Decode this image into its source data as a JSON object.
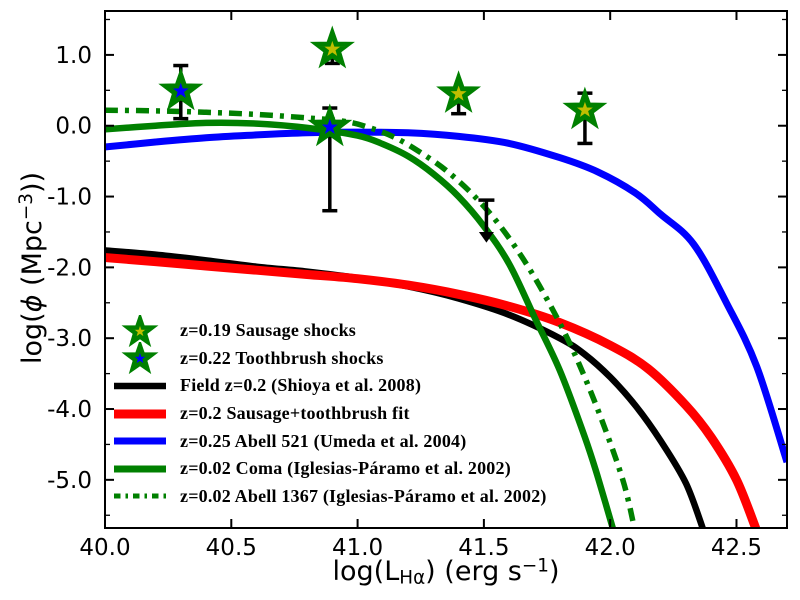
{
  "colors": {
    "background": "#ffffff",
    "frame": "#000000",
    "tick_text": "#000000"
  },
  "chart_data": {
    "type": "line",
    "title": "",
    "xlabel_parts": {
      "pre": "log(L",
      "sub": "Hα",
      "mid": ") (erg s",
      "sup": "−1",
      "post": ")"
    },
    "ylabel_parts": {
      "pre": "log(",
      "sym": "ϕ",
      "mid": " (Mpc",
      "sup": "−3",
      "post": "))"
    },
    "axes": {
      "xlim": [
        40.0,
        42.7
      ],
      "ylim": [
        -5.68,
        1.62
      ],
      "grid": false,
      "xticks": [
        {
          "v": 40.0,
          "label": "40.0"
        },
        {
          "v": 40.5,
          "label": "40.5"
        },
        {
          "v": 41.0,
          "label": "41.0"
        },
        {
          "v": 41.5,
          "label": "41.5"
        },
        {
          "v": 42.0,
          "label": "42.0"
        },
        {
          "v": 42.5,
          "label": "42.5"
        }
      ],
      "yticks": [
        {
          "v": 1.0,
          "label": "1.0"
        },
        {
          "v": 0.0,
          "label": "0.0"
        },
        {
          "v": -1.0,
          "label": "-1.0"
        },
        {
          "v": -2.0,
          "label": "-2.0"
        },
        {
          "v": -3.0,
          "label": "-3.0"
        },
        {
          "v": -4.0,
          "label": "-4.0"
        },
        {
          "v": -5.0,
          "label": "-5.0"
        }
      ],
      "yminors": [
        1.5,
        0.5,
        -0.5,
        -1.5,
        -2.5,
        -3.5,
        -4.5,
        -5.5
      ]
    },
    "series": [
      {
        "name": "Field z=0.2 (Shioya et al. 2008)",
        "color": "#000000",
        "width": 6.5,
        "style": "solid",
        "points": [
          [
            40.0,
            -1.76
          ],
          [
            40.2,
            -1.82
          ],
          [
            40.4,
            -1.9
          ],
          [
            40.6,
            -1.99
          ],
          [
            40.8,
            -2.06
          ],
          [
            41.0,
            -2.15
          ],
          [
            41.2,
            -2.27
          ],
          [
            41.4,
            -2.44
          ],
          [
            41.6,
            -2.67
          ],
          [
            41.8,
            -3.0
          ],
          [
            41.9,
            -3.23
          ],
          [
            42.0,
            -3.55
          ],
          [
            42.1,
            -3.95
          ],
          [
            42.2,
            -4.45
          ],
          [
            42.3,
            -5.05
          ],
          [
            42.37,
            -5.72
          ]
        ]
      },
      {
        "name": "z=0.2 Sausage+toothbrush fit",
        "color": "#ff0000",
        "width": 9,
        "style": "solid",
        "points": [
          [
            40.0,
            -1.86
          ],
          [
            40.2,
            -1.92
          ],
          [
            40.4,
            -1.98
          ],
          [
            40.6,
            -2.04
          ],
          [
            40.8,
            -2.1
          ],
          [
            41.0,
            -2.16
          ],
          [
            41.2,
            -2.25
          ],
          [
            41.4,
            -2.38
          ],
          [
            41.6,
            -2.55
          ],
          [
            41.8,
            -2.78
          ],
          [
            42.0,
            -3.1
          ],
          [
            42.15,
            -3.43
          ],
          [
            42.3,
            -3.95
          ],
          [
            42.4,
            -4.4
          ],
          [
            42.5,
            -5.0
          ],
          [
            42.58,
            -5.72
          ]
        ]
      },
      {
        "name": "z=0.25 Abell 521 (Umeda et al. 2004)",
        "color": "#0000ff",
        "width": 7,
        "style": "solid",
        "points": [
          [
            40.0,
            -0.3
          ],
          [
            40.2,
            -0.23
          ],
          [
            40.4,
            -0.17
          ],
          [
            40.6,
            -0.13
          ],
          [
            40.8,
            -0.1
          ],
          [
            41.0,
            -0.09
          ],
          [
            41.2,
            -0.1
          ],
          [
            41.4,
            -0.15
          ],
          [
            41.6,
            -0.25
          ],
          [
            41.8,
            -0.45
          ],
          [
            41.95,
            -0.65
          ],
          [
            42.1,
            -0.95
          ],
          [
            42.2,
            -1.25
          ],
          [
            42.33,
            -1.67
          ],
          [
            42.46,
            -2.5
          ],
          [
            42.58,
            -3.4
          ],
          [
            42.7,
            -4.75
          ]
        ]
      },
      {
        "name": "z=0.02 Coma (Iglesias-Páramo et al. 2002)",
        "color": "#008000",
        "width": 6.5,
        "style": "solid",
        "points": [
          [
            40.0,
            -0.05
          ],
          [
            40.2,
            0.0
          ],
          [
            40.4,
            0.04
          ],
          [
            40.6,
            0.03
          ],
          [
            40.8,
            -0.03
          ],
          [
            41.0,
            -0.14
          ],
          [
            41.1,
            -0.26
          ],
          [
            41.2,
            -0.43
          ],
          [
            41.3,
            -0.68
          ],
          [
            41.4,
            -1.0
          ],
          [
            41.5,
            -1.42
          ],
          [
            41.6,
            -1.95
          ],
          [
            41.7,
            -2.7
          ],
          [
            41.8,
            -3.45
          ],
          [
            41.9,
            -4.4
          ],
          [
            41.95,
            -4.95
          ],
          [
            42.02,
            -5.8
          ]
        ]
      },
      {
        "name": "z=0.02 Abell 1367 (Iglesias-Páramo et al. 2002)",
        "color": "#008000",
        "width": 5.5,
        "style": "dashdot",
        "points": [
          [
            40.0,
            0.22
          ],
          [
            40.2,
            0.21
          ],
          [
            40.4,
            0.19
          ],
          [
            40.6,
            0.16
          ],
          [
            40.8,
            0.11
          ],
          [
            40.95,
            0.06
          ],
          [
            41.05,
            -0.03
          ],
          [
            41.15,
            -0.17
          ],
          [
            41.25,
            -0.38
          ],
          [
            41.35,
            -0.63
          ],
          [
            41.45,
            -0.95
          ],
          [
            41.55,
            -1.35
          ],
          [
            41.65,
            -1.85
          ],
          [
            41.75,
            -2.45
          ],
          [
            41.85,
            -3.15
          ],
          [
            41.95,
            -4.0
          ],
          [
            42.05,
            -5.0
          ],
          [
            42.1,
            -5.75
          ]
        ]
      }
    ],
    "markers": [
      {
        "name": "z=0.19 Sausage shocks",
        "shape": "star",
        "fill": "#bfbf00",
        "edge": "#008000",
        "points": [
          {
            "x": 40.9,
            "y": 1.08,
            "lo": 0.88
          },
          {
            "x": 41.4,
            "y": 0.45,
            "lo": 0.17
          },
          {
            "x": 41.9,
            "y": 0.22,
            "lo": -0.25,
            "hi": 0.46
          }
        ]
      },
      {
        "name": "z=0.22 Toothbrush shocks",
        "shape": "star",
        "fill": "#0000ff",
        "edge": "#008000",
        "points": [
          {
            "x": 40.3,
            "y": 0.49,
            "lo": 0.1,
            "hi": 0.85
          },
          {
            "x": 40.89,
            "y": -0.02,
            "lo": -1.2,
            "hi": 0.25
          }
        ]
      }
    ],
    "upper_limit": {
      "x": 41.51,
      "top": -1.05,
      "bottom": -1.5,
      "tip": -1.65
    },
    "legend": [
      {
        "icon": "star",
        "fill": "#bfbf00",
        "edge": "#008000",
        "label": "z=0.19 Sausage shocks"
      },
      {
        "icon": "star",
        "fill": "#0000ff",
        "edge": "#008000",
        "label": "z=0.22 Toothbrush shocks"
      },
      {
        "icon": "line",
        "color": "#000000",
        "lw": 6.5,
        "label": "Field z=0.2 (Shioya et al. 2008)"
      },
      {
        "icon": "line",
        "color": "#ff0000",
        "lw": 9,
        "label": "z=0.2 Sausage+toothbrush fit"
      },
      {
        "icon": "line",
        "color": "#0000ff",
        "lw": 7,
        "label": "z=0.25 Abell 521 (Umeda et al. 2004)"
      },
      {
        "icon": "line",
        "color": "#008000",
        "lw": 7,
        "label": "z=0.02 Coma (Iglesias-Páramo et al. 2002)"
      },
      {
        "icon": "dashdot",
        "color": "#008000",
        "lw": 5,
        "label": "z=0.02 Abell 1367 (Iglesias-Páramo et al. 2002)"
      }
    ]
  }
}
